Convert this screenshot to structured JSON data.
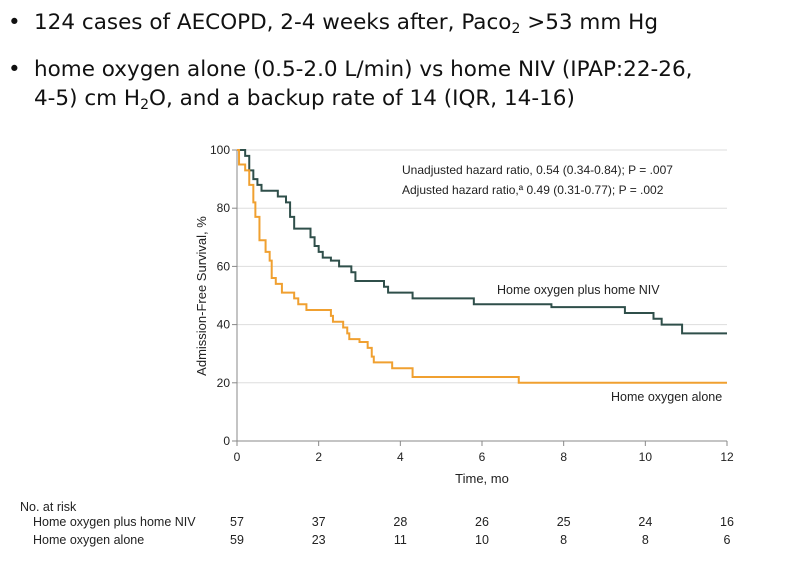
{
  "bullets": [
    {
      "pre": "124 cases of AECOPD, 2-4 weeks after, Paco",
      "sub": "2",
      "post": " >53 mm Hg"
    },
    {
      "line1": "home oxygen alone (0.5-2.0 L/min)  vs home NIV (IPAP:22-26,",
      "line2pre": "4-5) cm H",
      "sub": "2",
      "line2post": "O, and a backup rate of 14 (IQR, 14-16)"
    }
  ],
  "bullet_char": "•",
  "chart_data": {
    "type": "line",
    "subtype": "kaplan-meier step",
    "xlabel": "Time, mo",
    "ylabel": "Admission-Free Survival, %",
    "xlim": [
      0,
      12
    ],
    "ylim": [
      0,
      100
    ],
    "xticks": [
      "0",
      "2",
      "4",
      "6",
      "8",
      "10",
      "12"
    ],
    "yticks": [
      "0",
      "20",
      "40",
      "60",
      "80",
      "100"
    ],
    "grid": "horizontal",
    "annotations": [
      "Unadjusted hazard ratio, 0.54 (0.34-0.84); P = .007",
      "Adjusted hazard ratio,ª 0.49 (0.31-0.77); P = .002"
    ],
    "series": [
      {
        "name": "Home oxygen plus home NIV",
        "color": "#2f4f4a",
        "points": [
          [
            0,
            100
          ],
          [
            0.2,
            98
          ],
          [
            0.3,
            93
          ],
          [
            0.4,
            90
          ],
          [
            0.5,
            88
          ],
          [
            0.6,
            86
          ],
          [
            1.0,
            84
          ],
          [
            1.2,
            82
          ],
          [
            1.3,
            77
          ],
          [
            1.4,
            73
          ],
          [
            1.8,
            70
          ],
          [
            1.9,
            67
          ],
          [
            2.0,
            65
          ],
          [
            2.1,
            63
          ],
          [
            2.3,
            62
          ],
          [
            2.5,
            60
          ],
          [
            2.8,
            58
          ],
          [
            2.9,
            55
          ],
          [
            3.6,
            53
          ],
          [
            3.7,
            51
          ],
          [
            4.3,
            49
          ],
          [
            5.8,
            47
          ],
          [
            7.7,
            46
          ],
          [
            9.5,
            44
          ],
          [
            10.2,
            42
          ],
          [
            10.4,
            40
          ],
          [
            10.9,
            37
          ],
          [
            12,
            37
          ]
        ]
      },
      {
        "name": "Home oxygen alone",
        "color": "#f0a030",
        "points": [
          [
            0,
            100
          ],
          [
            0.05,
            95
          ],
          [
            0.2,
            93
          ],
          [
            0.3,
            88
          ],
          [
            0.4,
            82
          ],
          [
            0.45,
            77
          ],
          [
            0.55,
            69
          ],
          [
            0.7,
            65
          ],
          [
            0.8,
            62
          ],
          [
            0.85,
            56
          ],
          [
            0.95,
            54
          ],
          [
            1.1,
            51
          ],
          [
            1.4,
            49
          ],
          [
            1.5,
            47
          ],
          [
            1.7,
            45
          ],
          [
            2.3,
            43
          ],
          [
            2.35,
            41
          ],
          [
            2.6,
            39
          ],
          [
            2.7,
            37
          ],
          [
            2.75,
            35
          ],
          [
            3.0,
            34
          ],
          [
            3.2,
            32
          ],
          [
            3.3,
            29
          ],
          [
            3.35,
            27
          ],
          [
            3.8,
            25
          ],
          [
            4.3,
            22
          ],
          [
            6.9,
            20
          ],
          [
            12,
            20
          ]
        ]
      }
    ],
    "risk_table": {
      "title": "No. at risk",
      "rows": [
        {
          "label": "Home oxygen plus home NIV",
          "values": [
            "57",
            "37",
            "28",
            "26",
            "25",
            "24",
            "16"
          ]
        },
        {
          "label": "Home oxygen alone",
          "values": [
            "59",
            "23",
            "11",
            "10",
            "8",
            "8",
            "6"
          ]
        }
      ]
    }
  }
}
